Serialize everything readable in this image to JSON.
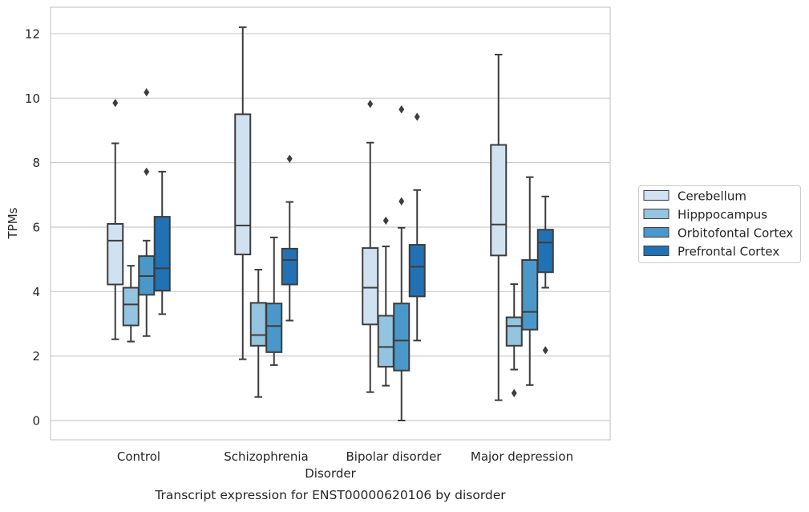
{
  "chart_data": {
    "type": "box",
    "caption": "Transcript expression for ENST00000620106 by disorder",
    "xlabel": "Disorder",
    "ylabel": "TPMs",
    "ylim": [
      -0.6,
      12.8
    ],
    "yticks": [
      0,
      2,
      4,
      6,
      8,
      10,
      12
    ],
    "grid": "horizontal",
    "legend_position": "right",
    "categories": [
      "Control",
      "Schizophrenia",
      "Bipolar disorder",
      "Major depression"
    ],
    "series": [
      {
        "name": "Cerebellum",
        "color": "#d0e1f2",
        "boxes": [
          {
            "whisker_low": 2.52,
            "q1": 4.22,
            "median": 5.58,
            "q3": 6.1,
            "whisker_high": 8.6,
            "outliers": [
              9.85
            ]
          },
          {
            "whisker_low": 1.9,
            "q1": 5.15,
            "median": 6.05,
            "q3": 9.5,
            "whisker_high": 12.2,
            "outliers": []
          },
          {
            "whisker_low": 0.88,
            "q1": 2.98,
            "median": 4.12,
            "q3": 5.35,
            "whisker_high": 8.62,
            "outliers": [
              9.82
            ]
          },
          {
            "whisker_low": 0.63,
            "q1": 5.12,
            "median": 6.08,
            "q3": 8.55,
            "whisker_high": 11.35,
            "outliers": []
          }
        ]
      },
      {
        "name": "Hipppocampus",
        "color": "#94c4df",
        "boxes": [
          {
            "whisker_low": 2.45,
            "q1": 2.95,
            "median": 3.6,
            "q3": 4.12,
            "whisker_high": 4.8,
            "outliers": []
          },
          {
            "whisker_low": 0.73,
            "q1": 2.32,
            "median": 2.65,
            "q3": 3.65,
            "whisker_high": 4.68,
            "outliers": []
          },
          {
            "whisker_low": 1.08,
            "q1": 1.67,
            "median": 2.28,
            "q3": 3.25,
            "whisker_high": 5.4,
            "outliers": [
              6.2
            ]
          },
          {
            "whisker_low": 1.58,
            "q1": 2.32,
            "median": 2.93,
            "q3": 3.2,
            "whisker_high": 4.23,
            "outliers": [
              0.85
            ]
          }
        ]
      },
      {
        "name": "Orbitofontal Cortex",
        "color": "#4a98c9",
        "boxes": [
          {
            "whisker_low": 2.62,
            "q1": 3.9,
            "median": 4.48,
            "q3": 5.1,
            "whisker_high": 5.58,
            "outliers": [
              7.72,
              10.18
            ]
          },
          {
            "whisker_low": 1.72,
            "q1": 2.12,
            "median": 2.93,
            "q3": 3.63,
            "whisker_high": 5.68,
            "outliers": []
          },
          {
            "whisker_low": 0.0,
            "q1": 1.55,
            "median": 2.48,
            "q3": 3.63,
            "whisker_high": 5.98,
            "outliers": [
              6.8,
              9.65
            ]
          },
          {
            "whisker_low": 1.1,
            "q1": 2.82,
            "median": 3.37,
            "q3": 4.98,
            "whisker_high": 7.55,
            "outliers": []
          }
        ]
      },
      {
        "name": "Prefrontal Cortex",
        "color": "#2171b5",
        "boxes": [
          {
            "whisker_low": 3.3,
            "q1": 4.03,
            "median": 4.72,
            "q3": 6.32,
            "whisker_high": 7.72,
            "outliers": []
          },
          {
            "whisker_low": 3.1,
            "q1": 4.22,
            "median": 4.98,
            "q3": 5.33,
            "whisker_high": 6.78,
            "outliers": [
              8.12
            ]
          },
          {
            "whisker_low": 2.48,
            "q1": 3.85,
            "median": 4.77,
            "q3": 5.45,
            "whisker_high": 7.15,
            "outliers": [
              9.42
            ]
          },
          {
            "whisker_low": 4.12,
            "q1": 4.6,
            "median": 5.52,
            "q3": 5.92,
            "whisker_high": 6.95,
            "outliers": [
              2.18
            ]
          }
        ]
      }
    ],
    "colors": {
      "line": "#3d3d3d",
      "grid": "#cccccc",
      "frame": "#cccccc",
      "text": "#262626"
    }
  }
}
